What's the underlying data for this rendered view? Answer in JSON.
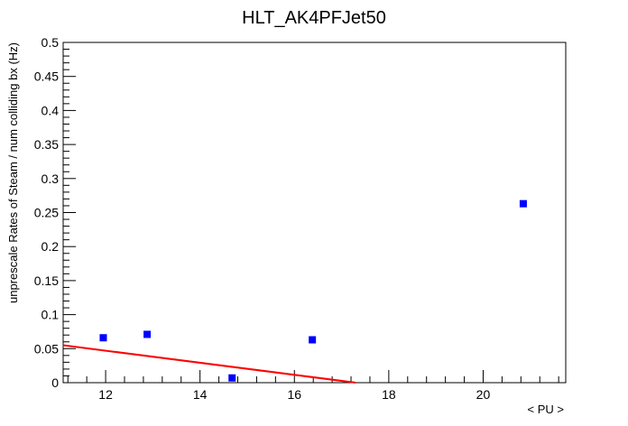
{
  "chart_data": {
    "type": "scatter",
    "title": "HLT_AK4PFJet50",
    "xlabel": "< PU >",
    "ylabel": "unprescale Rates of Steam / num colliding bx (Hz)",
    "xlim": [
      11.1,
      21.75
    ],
    "ylim": [
      0,
      0.5
    ],
    "x_ticks": [
      "12",
      "14",
      "16",
      "18",
      "20"
    ],
    "y_ticks": [
      "0",
      "0.05",
      "0.1",
      "0.15",
      "0.2",
      "0.25",
      "0.3",
      "0.35",
      "0.4",
      "0.45",
      "0.5"
    ],
    "grid": false,
    "legend": "none",
    "series": [
      {
        "type": "scatter",
        "color": "#0000ff",
        "marker": "square",
        "x": [
          11.95,
          12.88,
          14.68,
          16.38,
          20.85
        ],
        "y": [
          0.066,
          0.071,
          0.007,
          0.063,
          0.263
        ]
      },
      {
        "type": "line",
        "color": "#ff0000",
        "x": [
          11.1,
          17.3
        ],
        "y": [
          0.055,
          0.0
        ]
      }
    ]
  }
}
